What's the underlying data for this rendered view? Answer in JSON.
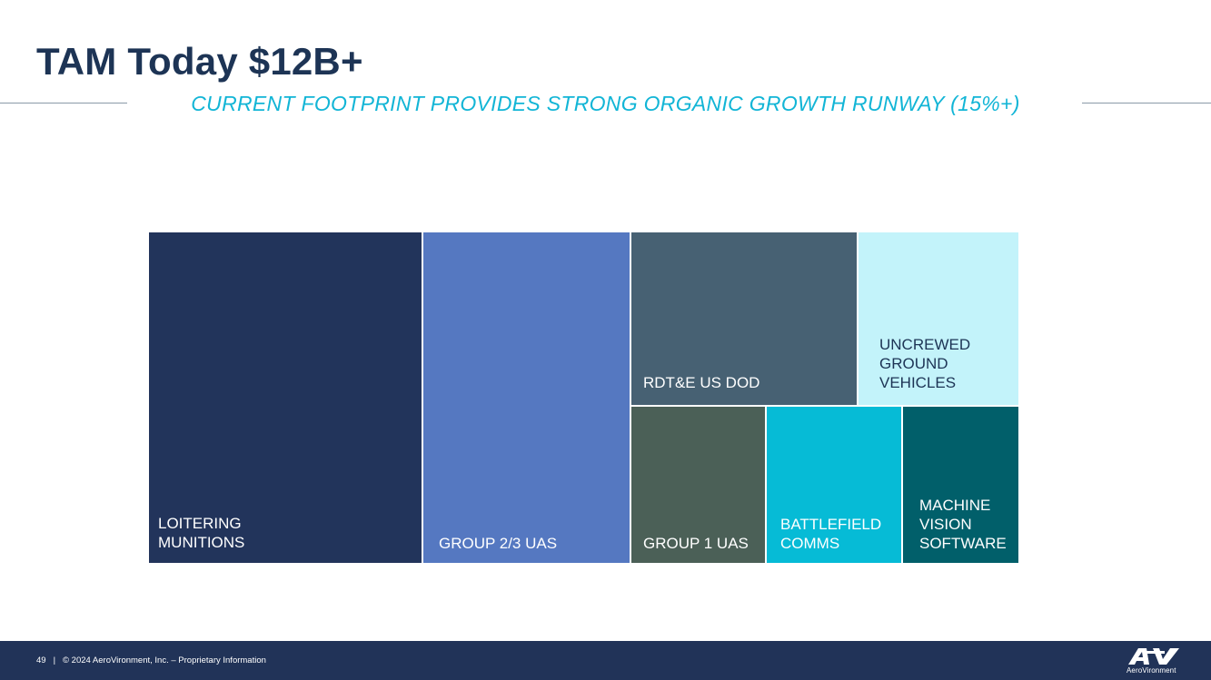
{
  "slide": {
    "title": "TAM Today $12B+",
    "subtitle": "CURRENT FOOTPRINT PROVIDES STRONG ORGANIC GROWTH RUNWAY (15%+)"
  },
  "footer": {
    "page_number": "49",
    "separator": "|",
    "copyright": "© 2024 AeroVironment, Inc. – Proprietary Information",
    "logo_text": "AeroVironment"
  },
  "colors": {
    "title": "#1d3455",
    "subtitle": "#12b5d6",
    "footer_bg": "#213358"
  },
  "chart_data": {
    "type": "treemap",
    "title": "TAM Today $12B+",
    "segments": [
      {
        "label": "LOITERING\nMUNITIONS",
        "share": 1.0,
        "color": "#22345b"
      },
      {
        "label": "GROUP 2/3 UAS",
        "share": 0.75,
        "color": "#5578c1"
      },
      {
        "label": "RDT&E US DOD",
        "share": 0.6,
        "color": "#476173"
      },
      {
        "label": "UNCREWED\nGROUND\nVEHICLES",
        "share": 0.38,
        "color": "#c3f3fa"
      },
      {
        "label": "GROUP 1 UAS",
        "share": 0.25,
        "color": "#4b6057"
      },
      {
        "label": "BATTLEFIELD\nCOMMS",
        "share": 0.25,
        "color": "#06bbd6"
      },
      {
        "label": "MACHINE\nVISION\nSOFTWARE",
        "share": 0.21,
        "color": "#015f6a"
      }
    ]
  }
}
